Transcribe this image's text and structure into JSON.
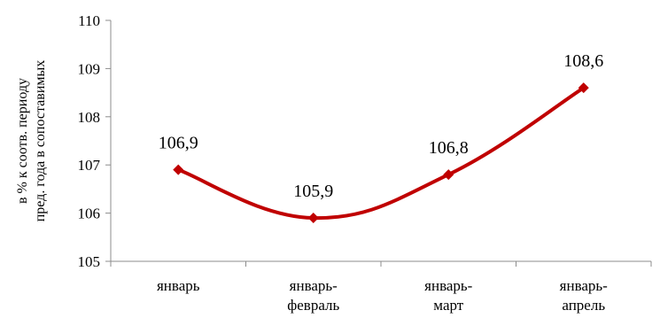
{
  "chart_data": {
    "type": "line",
    "title": "",
    "ylabel_lines": [
      "в % к соотв. периоду",
      "пред. года в сопоставимых"
    ],
    "categories": [
      [
        "январь"
      ],
      [
        "январь-",
        "февраль"
      ],
      [
        "январь-",
        "март"
      ],
      [
        "январь-",
        "апрель"
      ]
    ],
    "series": [
      {
        "values": [
          106.9,
          105.9,
          106.8,
          108.6
        ],
        "data_labels": [
          "106,9",
          "105,9",
          "106,8",
          "108,6"
        ],
        "color": "#c00000",
        "marker": "diamond",
        "smooth": true
      }
    ],
    "ylim": [
      105,
      110
    ],
    "yticks": [
      105,
      106,
      107,
      108,
      109,
      110
    ],
    "ytick_labels": [
      "105",
      "106",
      "107",
      "108",
      "109",
      "110"
    ],
    "grid": false,
    "legend": "none"
  }
}
